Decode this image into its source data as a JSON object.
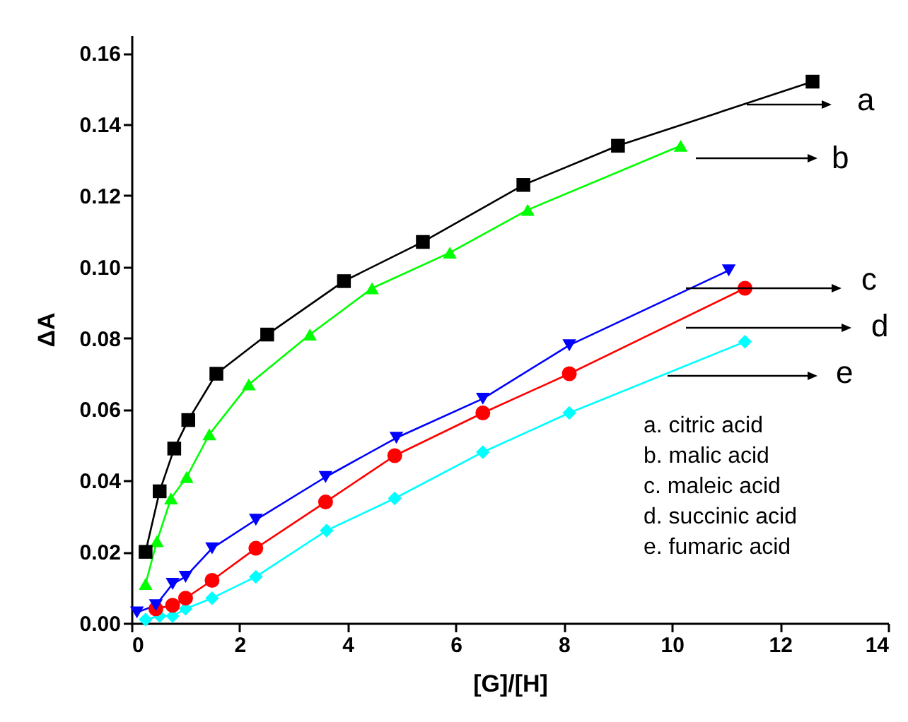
{
  "chart_data": {
    "type": "line",
    "xlabel": "[G]/[H]",
    "ylabel": "ΔA",
    "xlim": [
      0,
      14
    ],
    "ylim": [
      0,
      0.165
    ],
    "xticks": [
      0,
      2,
      4,
      6,
      8,
      10,
      12,
      14
    ],
    "yticks": [
      {
        "value": 0,
        "label": "0.00"
      },
      {
        "value": 0.02,
        "label": "0.02"
      },
      {
        "value": 0.04,
        "label": "0.04"
      },
      {
        "value": 0.06,
        "label": "0.06"
      },
      {
        "value": 0.08,
        "label": "0.08"
      },
      {
        "value": 0.1,
        "label": "0.10"
      },
      {
        "value": 0.12,
        "label": "0.12"
      },
      {
        "value": 0.14,
        "label": "0.14"
      },
      {
        "value": 0.16,
        "label": "0.16"
      }
    ],
    "grid": false,
    "series": [
      {
        "color": "#000000",
        "marker": "square",
        "x": [
          0.26,
          0.52,
          0.79,
          1.05,
          1.57,
          2.51,
          3.93,
          5.39,
          7.25,
          9.0,
          12.6
        ],
        "values": [
          0.02,
          0.037,
          0.049,
          0.057,
          0.07,
          0.081,
          0.096,
          0.107,
          0.123,
          0.134,
          0.152
        ]
      },
      {
        "color": "#00ff00",
        "marker": "triangle",
        "x": [
          0.26,
          0.47,
          0.73,
          1.02,
          1.44,
          2.17,
          3.3,
          4.45,
          5.89,
          7.33,
          10.16
        ],
        "values": [
          0.011,
          0.023,
          0.035,
          0.041,
          0.053,
          0.067,
          0.081,
          0.094,
          0.104,
          0.116,
          0.134
        ]
      },
      {
        "color": "#0000ff",
        "marker": "triangle-down",
        "x": [
          0.1,
          0.45,
          0.76,
          1.0,
          1.49,
          2.3,
          3.59,
          4.9,
          6.5,
          8.1,
          11.05
        ],
        "values": [
          0.003,
          0.005,
          0.011,
          0.013,
          0.021,
          0.029,
          0.041,
          0.052,
          0.063,
          0.078,
          0.099
        ]
      },
      {
        "color": "#ff0000",
        "marker": "circle",
        "x": [
          0.45,
          0.76,
          1.0,
          1.49,
          2.3,
          3.59,
          4.87,
          6.5,
          8.1,
          11.35
        ],
        "values": [
          0.004,
          0.005,
          0.007,
          0.012,
          0.021,
          0.034,
          0.047,
          0.059,
          0.07,
          0.094
        ]
      },
      {
        "color": "#00ffff",
        "marker": "diamond",
        "x": [
          0.26,
          0.52,
          0.76,
          1.0,
          1.49,
          2.3,
          3.61,
          4.87,
          6.5,
          8.1,
          11.35
        ],
        "values": [
          0.001,
          0.002,
          0.002,
          0.004,
          0.007,
          0.013,
          0.026,
          0.035,
          0.048,
          0.059,
          0.079
        ]
      }
    ],
    "annotations": [
      "a",
      "b",
      "c",
      "d",
      "e",
      "a. citric acid",
      "b. malic acid",
      "c. maleic acid",
      "d. succinic acid",
      "e. fumaric acid"
    ]
  }
}
